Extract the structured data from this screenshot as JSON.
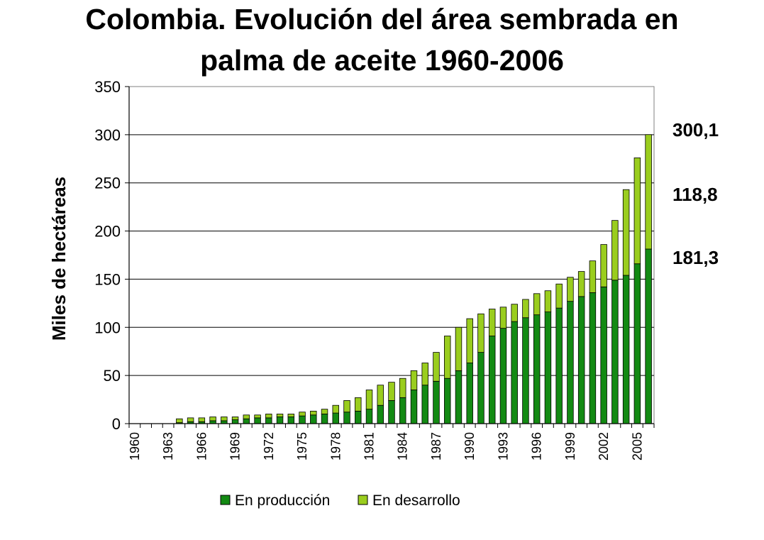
{
  "title_line1": "Colombia. Evolución del área sembrada en",
  "title_line2": "palma de aceite 1960-2006",
  "chart_data": {
    "type": "bar",
    "stacked": true,
    "ylabel": "Miles de hectáreas",
    "ylim": [
      0,
      350
    ],
    "yticks": [
      0,
      50,
      100,
      150,
      200,
      250,
      300,
      350
    ],
    "grid": "horizontal",
    "legend_position": "bottom",
    "categories": [
      1960,
      1961,
      1962,
      1963,
      1964,
      1965,
      1966,
      1967,
      1968,
      1969,
      1970,
      1971,
      1972,
      1973,
      1974,
      1975,
      1976,
      1977,
      1978,
      1979,
      1980,
      1981,
      1982,
      1983,
      1984,
      1985,
      1986,
      1987,
      1988,
      1989,
      1990,
      1991,
      1992,
      1993,
      1994,
      1995,
      1996,
      1997,
      1998,
      1999,
      2000,
      2001,
      2002,
      2003,
      2004,
      2005,
      2006
    ],
    "xtick_labels": [
      "1960",
      "1963",
      "1966",
      "1969",
      "1972",
      "1975",
      "1978",
      "1981",
      "1984",
      "1987",
      "1990",
      "1993",
      "1996",
      "1999",
      "2002",
      "2005"
    ],
    "series": [
      {
        "name": "En producción",
        "color": "#138a13",
        "values": [
          0,
          0,
          0,
          0,
          1,
          2,
          2,
          3,
          3,
          4,
          5,
          6,
          6,
          7,
          7,
          8,
          9,
          10,
          11,
          12,
          13,
          15,
          19,
          24,
          27,
          35,
          40,
          44,
          47,
          55,
          63,
          74,
          91,
          99,
          106,
          110,
          113,
          116,
          120,
          127,
          132,
          136,
          142,
          149,
          154,
          166,
          181.3
        ]
      },
      {
        "name": "En desarrollo",
        "color": "#9acd1e",
        "values": [
          0,
          0,
          0,
          0,
          4,
          4,
          4,
          4,
          4,
          3,
          4,
          3,
          4,
          3,
          3,
          4,
          4,
          5,
          8,
          12,
          14,
          20,
          21,
          19,
          20,
          20,
          23,
          30,
          44,
          45,
          46,
          40,
          28,
          22,
          18,
          19,
          22,
          22,
          25,
          25,
          26,
          33,
          44,
          62,
          89,
          110,
          118.8
        ]
      }
    ],
    "annotations": [
      "300,1",
      "118,8",
      "181,3"
    ]
  }
}
